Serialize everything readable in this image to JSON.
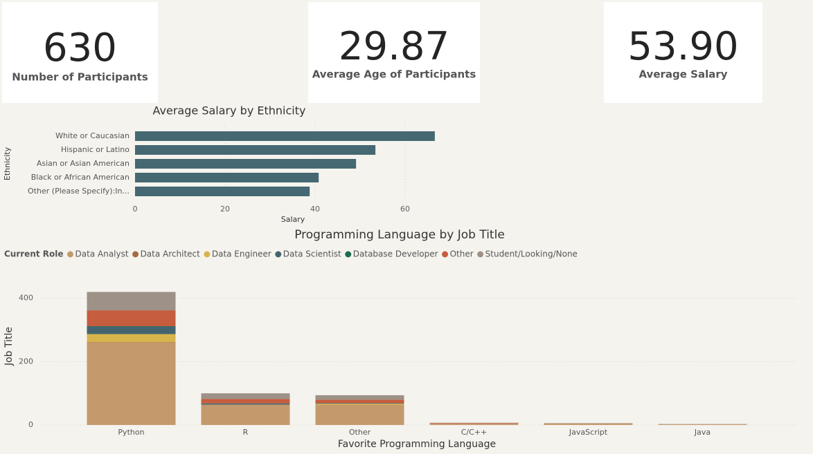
{
  "cards": [
    {
      "value": "630",
      "label": "Number of Participants"
    },
    {
      "value": "29.87",
      "label": "Average Age of Participants"
    },
    {
      "value": "53.90",
      "label": "Average Salary"
    }
  ],
  "chart_data": [
    {
      "type": "hbar",
      "title": "Average Salary by Ethnicity",
      "categories": [
        "White or Caucasian",
        "Hispanic or Latino",
        "Asian or Asian American",
        "Black or African American",
        "Other (Please Specify):In..."
      ],
      "values": [
        66.6,
        53.4,
        49.1,
        40.8,
        38.8
      ],
      "color": "#456872",
      "xlabel": "Salary",
      "ylabel": "Ethnicity",
      "xlim": [
        0,
        70
      ],
      "xticks": [
        0,
        20,
        40,
        60
      ],
      "grid": true
    },
    {
      "type": "stacked_bar",
      "title": "Programming Language by Job Title",
      "legend_title": "Current Role",
      "categories": [
        "Python",
        "R",
        "Other",
        "C/C++",
        "JavaScript",
        "Java"
      ],
      "series": [
        {
          "name": "Data Analyst",
          "color": "#c49a6c",
          "values": [
            259,
            62,
            62,
            4,
            5,
            2
          ]
        },
        {
          "name": "Data Architect",
          "color": "#a66a43",
          "values": [
            2,
            1,
            1,
            0,
            0,
            0
          ]
        },
        {
          "name": "Data Engineer",
          "color": "#d8b44c",
          "values": [
            26,
            1,
            4,
            0,
            0,
            0
          ]
        },
        {
          "name": "Data Scientist",
          "color": "#446570",
          "values": [
            24,
            4,
            2,
            0,
            0,
            0
          ]
        },
        {
          "name": "Database Developer",
          "color": "#1e6b52",
          "values": [
            1,
            0,
            0,
            0,
            0,
            0
          ]
        },
        {
          "name": "Other",
          "color": "#c55d3e",
          "values": [
            50,
            14,
            11,
            2,
            0,
            0
          ]
        },
        {
          "name": "Student/Looking/None",
          "color": "#9d9188",
          "values": [
            58,
            18,
            14,
            1,
            1,
            1
          ]
        }
      ],
      "xlabel": "Favorite Programming Language",
      "ylabel": "Job Title",
      "ylim": [
        0,
        480
      ],
      "yticks": [
        0,
        200,
        400
      ],
      "grid": true
    }
  ]
}
